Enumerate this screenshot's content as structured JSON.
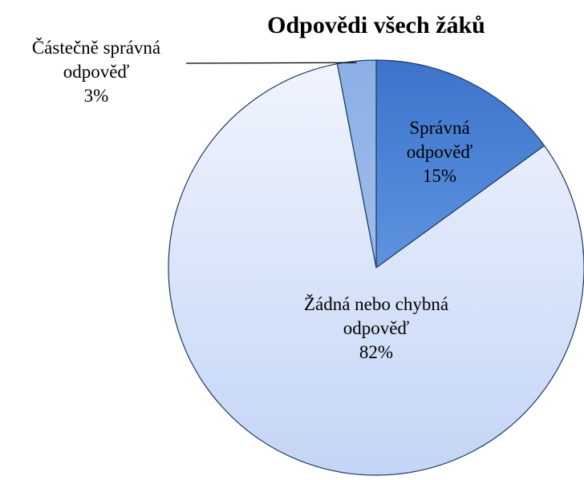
{
  "chart_data": {
    "type": "pie",
    "title": "Odpovědi všech žáků",
    "categories": [
      "Správná odpověď",
      "Žádná nebo chybná odpověď",
      "Částečně správná odpověď"
    ],
    "values": [
      15,
      82,
      3
    ],
    "value_labels": [
      "15%",
      "82%",
      "3%"
    ],
    "colors": [
      "#4a82d6",
      "#dbe6fb",
      "#8fb2e6"
    ]
  }
}
